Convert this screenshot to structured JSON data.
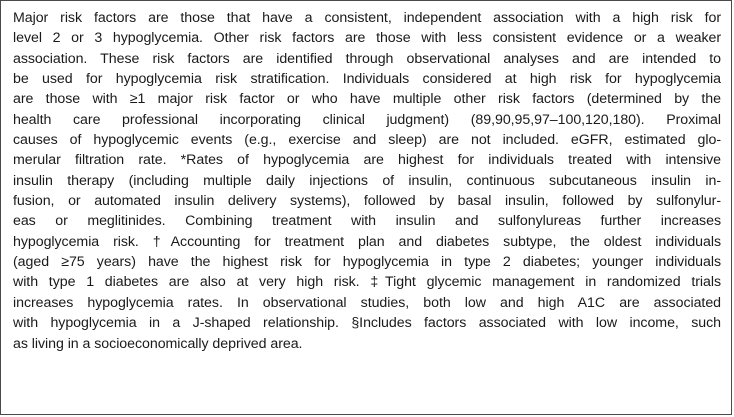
{
  "footnote": {
    "lines": [
      "Major risk factors are those that have a consistent, independent association with a high risk for",
      "level 2 or 3 hypoglycemia. Other risk factors are those with less consistent evidence or a weaker",
      "association. These risk factors are identified through observational analyses and are intended to",
      "be used for hypoglycemia risk stratification. Individuals considered at high risk for hypoglycemia",
      "are those with ≥1 major risk factor or who have multiple other risk factors (determined by the",
      "health care professional incorporating clinical judgment) (89,90,95,97–100,120,180). Proximal",
      "causes of hypoglycemic events (e.g., exercise and sleep) are not included. eGFR, estimated glo-",
      "merular filtration rate. *Rates of hypoglycemia are highest for individuals treated with intensive",
      "insulin therapy (including multiple daily injections of insulin, continuous subcutaneous insulin in-",
      "fusion, or automated insulin delivery systems), followed by basal insulin, followed by sulfonylur-",
      "eas or meglitinides. Combining treatment with insulin and sulfonylureas further increases",
      "hypoglycemia risk. †Accounting for treatment plan and diabetes subtype, the oldest individuals",
      "(aged ≥75 years) have the highest risk for hypoglycemia in type 2 diabetes; younger individuals",
      "with type 1 diabetes are also at very high risk. ‡Tight glycemic management in randomized trials",
      "increases hypoglycemia rates. In observational studies, both low and high A1C are associated",
      "with hypoglycemia in a J-shaped relationship. §Includes factors associated with low income, such",
      "as living in a socioeconomically deprived area."
    ]
  }
}
